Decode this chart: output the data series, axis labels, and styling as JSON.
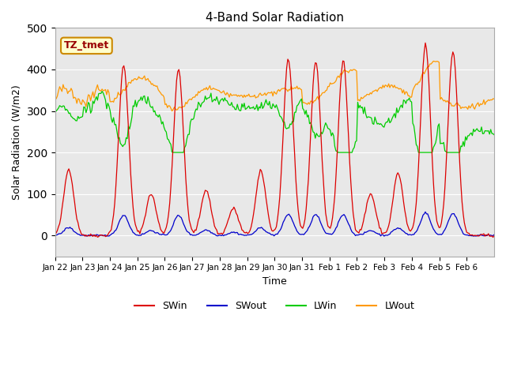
{
  "title": "4-Band Solar Radiation",
  "xlabel": "Time",
  "ylabel": "Solar Radiation (W/m2)",
  "ylim": [
    -50,
    500
  ],
  "annotation": "TZ_tmet",
  "colors": {
    "SWin": "#dd0000",
    "SWout": "#0000cc",
    "LWin": "#00cc00",
    "LWout": "#ff9900"
  },
  "xtick_labels": [
    "Jan 22",
    "Jan 23",
    "Jan 24",
    "Jan 25",
    "Jan 26",
    "Jan 27",
    "Jan 28",
    "Jan 29",
    "Jan 30",
    "Jan 31",
    "Feb 1",
    "Feb 2",
    "Feb 3",
    "Feb 4",
    "Feb 5",
    "Feb 6"
  ],
  "bg_color": "#e8e8e8",
  "fig_bg": "#ffffff"
}
